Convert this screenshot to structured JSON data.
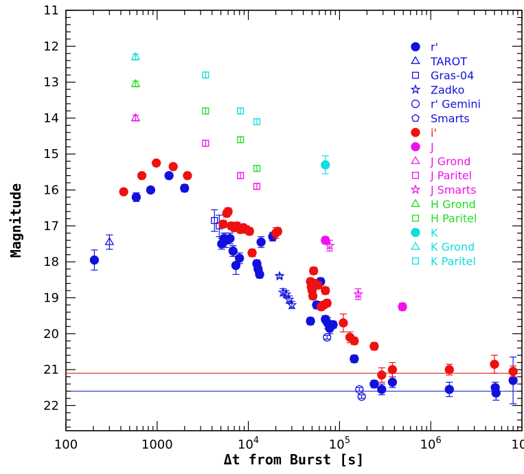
{
  "chart_data": {
    "type": "scatter",
    "xlabel": "Δt from Burst [s]",
    "ylabel": "Magnitude",
    "xscale": "log",
    "xlim": [
      100,
      10000000
    ],
    "ylim": [
      11,
      22.7
    ],
    "y_inverted": true,
    "x_ticks": [
      {
        "value": 100,
        "label": "100"
      },
      {
        "value": 1000,
        "label": "1000"
      },
      {
        "value": 10000,
        "label": "10",
        "exp": "4"
      },
      {
        "value": 100000,
        "label": "10",
        "exp": "5"
      },
      {
        "value": 1000000,
        "label": "10",
        "exp": "6"
      },
      {
        "value": 10000000,
        "label": "10",
        "exp": "7"
      }
    ],
    "y_ticks": [
      11,
      12,
      13,
      14,
      15,
      16,
      17,
      18,
      19,
      20,
      21,
      22
    ],
    "grid": false,
    "legend_position": "top-right",
    "reference_lines": [
      {
        "y": 21.1,
        "color": "#dd2222"
      },
      {
        "y": 21.6,
        "color": "#2233cc"
      }
    ],
    "series": [
      {
        "name": "r'",
        "color": "#1111dd",
        "marker": "circle",
        "filled": true,
        "points": [
          [
            205,
            17.95,
            0.28
          ],
          [
            590,
            16.2,
            0.12
          ],
          [
            850,
            16.0,
            0.08
          ],
          [
            1350,
            15.6,
            0.08
          ],
          [
            2000,
            15.95,
            0.1
          ],
          [
            5100,
            17.5,
            0.15
          ],
          [
            5400,
            17.35,
            0.15
          ],
          [
            5700,
            17.4,
            0.2
          ],
          [
            6300,
            17.35,
            0.15
          ],
          [
            6800,
            17.7,
            0.15
          ],
          [
            7300,
            18.1,
            0.25
          ],
          [
            8000,
            17.9,
            0.15
          ],
          [
            12400,
            18.05,
            0.1
          ],
          [
            12800,
            18.2,
            0.1
          ],
          [
            13300,
            18.35,
            0.1
          ],
          [
            13800,
            17.45,
            0.15
          ],
          [
            18500,
            17.3,
            0.12
          ],
          [
            48000,
            19.65,
            0.1
          ],
          [
            56000,
            19.2,
            0.1
          ],
          [
            62000,
            18.55,
            0.1
          ],
          [
            70000,
            19.6,
            0.1
          ],
          [
            74000,
            19.7,
            0.15
          ],
          [
            78000,
            19.85,
            0.15
          ],
          [
            85000,
            19.75,
            0.1
          ],
          [
            145000,
            20.7,
            0.1
          ],
          [
            240000,
            21.4,
            0.1
          ],
          [
            290000,
            21.55,
            0.15
          ],
          [
            380000,
            21.35,
            0.15
          ],
          [
            1600000,
            21.55,
            0.2
          ],
          [
            5100000,
            21.5,
            0.15
          ],
          [
            5200000,
            21.65,
            0.2
          ],
          [
            8000000,
            21.3,
            0.65
          ]
        ]
      },
      {
        "name": "TAROT",
        "color": "#1111dd",
        "marker": "triangle",
        "filled": false,
        "points": [
          [
            300,
            17.45,
            0.2
          ]
        ]
      },
      {
        "name": "Gras-04",
        "color": "#1111dd",
        "marker": "square",
        "filled": false,
        "points": [
          [
            4250,
            16.85,
            0.3
          ],
          [
            4800,
            17.0,
            0.3
          ]
        ]
      },
      {
        "name": "Zadko",
        "color": "#1111dd",
        "marker": "star",
        "filled": false,
        "points": [
          [
            22000,
            18.4,
            0.05
          ],
          [
            24000,
            18.85,
            0.1
          ],
          [
            26000,
            18.9,
            0.1
          ],
          [
            28000,
            19.05,
            0.1
          ],
          [
            30000,
            19.2,
            0.1
          ]
        ]
      },
      {
        "name": "r' Gemini",
        "color": "#1111dd",
        "marker": "circle",
        "filled": false,
        "points": [
          [
            73000,
            20.1,
            0.05
          ],
          [
            165000,
            21.55,
            0.05
          ],
          [
            175000,
            21.75,
            0.05
          ]
        ]
      },
      {
        "name": "Smarts",
        "color": "#1111dd",
        "marker": "pentagon",
        "filled": false,
        "points": []
      },
      {
        "name": "i'",
        "color": "#ee1111",
        "marker": "circle",
        "filled": true,
        "points": [
          [
            430,
            16.05,
            0.08
          ],
          [
            680,
            15.6,
            0.08
          ],
          [
            980,
            15.25,
            0.08
          ],
          [
            1500,
            15.35,
            0.08
          ],
          [
            2150,
            15.6,
            0.08
          ],
          [
            5300,
            16.95,
            0.1
          ],
          [
            5800,
            16.65,
            0.1
          ],
          [
            6000,
            16.6,
            0.1
          ],
          [
            6500,
            17.0,
            0.1
          ],
          [
            7000,
            17.05,
            0.1
          ],
          [
            7500,
            17.0,
            0.1
          ],
          [
            8200,
            17.1,
            0.1
          ],
          [
            8800,
            17.05,
            0.1
          ],
          [
            9500,
            17.1,
            0.1
          ],
          [
            10300,
            17.15,
            0.1
          ],
          [
            11000,
            17.75,
            0.1
          ],
          [
            20000,
            17.2,
            0.15
          ],
          [
            21000,
            17.15,
            0.1
          ],
          [
            48000,
            18.55,
            0.1
          ],
          [
            49000,
            18.7,
            0.1
          ],
          [
            50000,
            18.8,
            0.1
          ],
          [
            51000,
            18.95,
            0.1
          ],
          [
            52000,
            18.25,
            0.1
          ],
          [
            54000,
            18.6,
            0.1
          ],
          [
            58000,
            18.65,
            0.1
          ],
          [
            63000,
            19.25,
            0.1
          ],
          [
            67000,
            19.2,
            0.1
          ],
          [
            70000,
            18.8,
            0.1
          ],
          [
            73000,
            19.15,
            0.1
          ],
          [
            110000,
            19.7,
            0.25
          ],
          [
            130000,
            20.1,
            0.15
          ],
          [
            145000,
            20.2,
            0.1
          ],
          [
            240000,
            20.35,
            0.1
          ],
          [
            290000,
            21.15,
            0.2
          ],
          [
            380000,
            21.0,
            0.2
          ],
          [
            1600000,
            21.0,
            0.15
          ],
          [
            5000000,
            20.85,
            0.25
          ],
          [
            8000000,
            21.05,
            0.15
          ]
        ]
      },
      {
        "name": "J",
        "color": "#ee11ee",
        "marker": "circle",
        "filled": true,
        "points": [
          [
            70000,
            17.4,
            0.1
          ],
          [
            490000,
            19.25,
            0.1
          ]
        ]
      },
      {
        "name": "J Grond",
        "color": "#ee11ee",
        "marker": "triangle",
        "filled": false,
        "points": [
          [
            580,
            14.0,
            0.08
          ]
        ]
      },
      {
        "name": "J Paritel",
        "color": "#ee11ee",
        "marker": "square",
        "filled": false,
        "points": [
          [
            3400,
            14.7,
            0.08
          ],
          [
            8200,
            15.6,
            0.08
          ],
          [
            12400,
            15.9,
            0.08
          ]
        ]
      },
      {
        "name": "J Smarts",
        "color": "#ee11ee",
        "marker": "star",
        "filled": false,
        "points": [
          [
            78000,
            17.55,
            0.15
          ],
          [
            160000,
            18.9,
            0.15
          ]
        ]
      },
      {
        "name": "H Grond",
        "color": "#22dd22",
        "marker": "triangle",
        "filled": false,
        "points": [
          [
            580,
            13.05,
            0.08
          ]
        ]
      },
      {
        "name": "H Paritel",
        "color": "#22dd22",
        "marker": "square",
        "filled": false,
        "points": [
          [
            3400,
            13.8,
            0.08
          ],
          [
            8200,
            14.6,
            0.08
          ],
          [
            12400,
            15.4,
            0.08
          ]
        ]
      },
      {
        "name": "K",
        "color": "#11dddd",
        "marker": "circle",
        "filled": true,
        "points": [
          [
            70000,
            15.3,
            0.25
          ]
        ]
      },
      {
        "name": "K Grond",
        "color": "#11dddd",
        "marker": "triangle",
        "filled": false,
        "points": [
          [
            580,
            12.3,
            0.08
          ]
        ]
      },
      {
        "name": "K Paritel",
        "color": "#11dddd",
        "marker": "square",
        "filled": false,
        "points": [
          [
            3400,
            12.8,
            0.08
          ],
          [
            8200,
            13.8,
            0.08
          ],
          [
            12400,
            14.1,
            0.08
          ]
        ]
      }
    ]
  }
}
